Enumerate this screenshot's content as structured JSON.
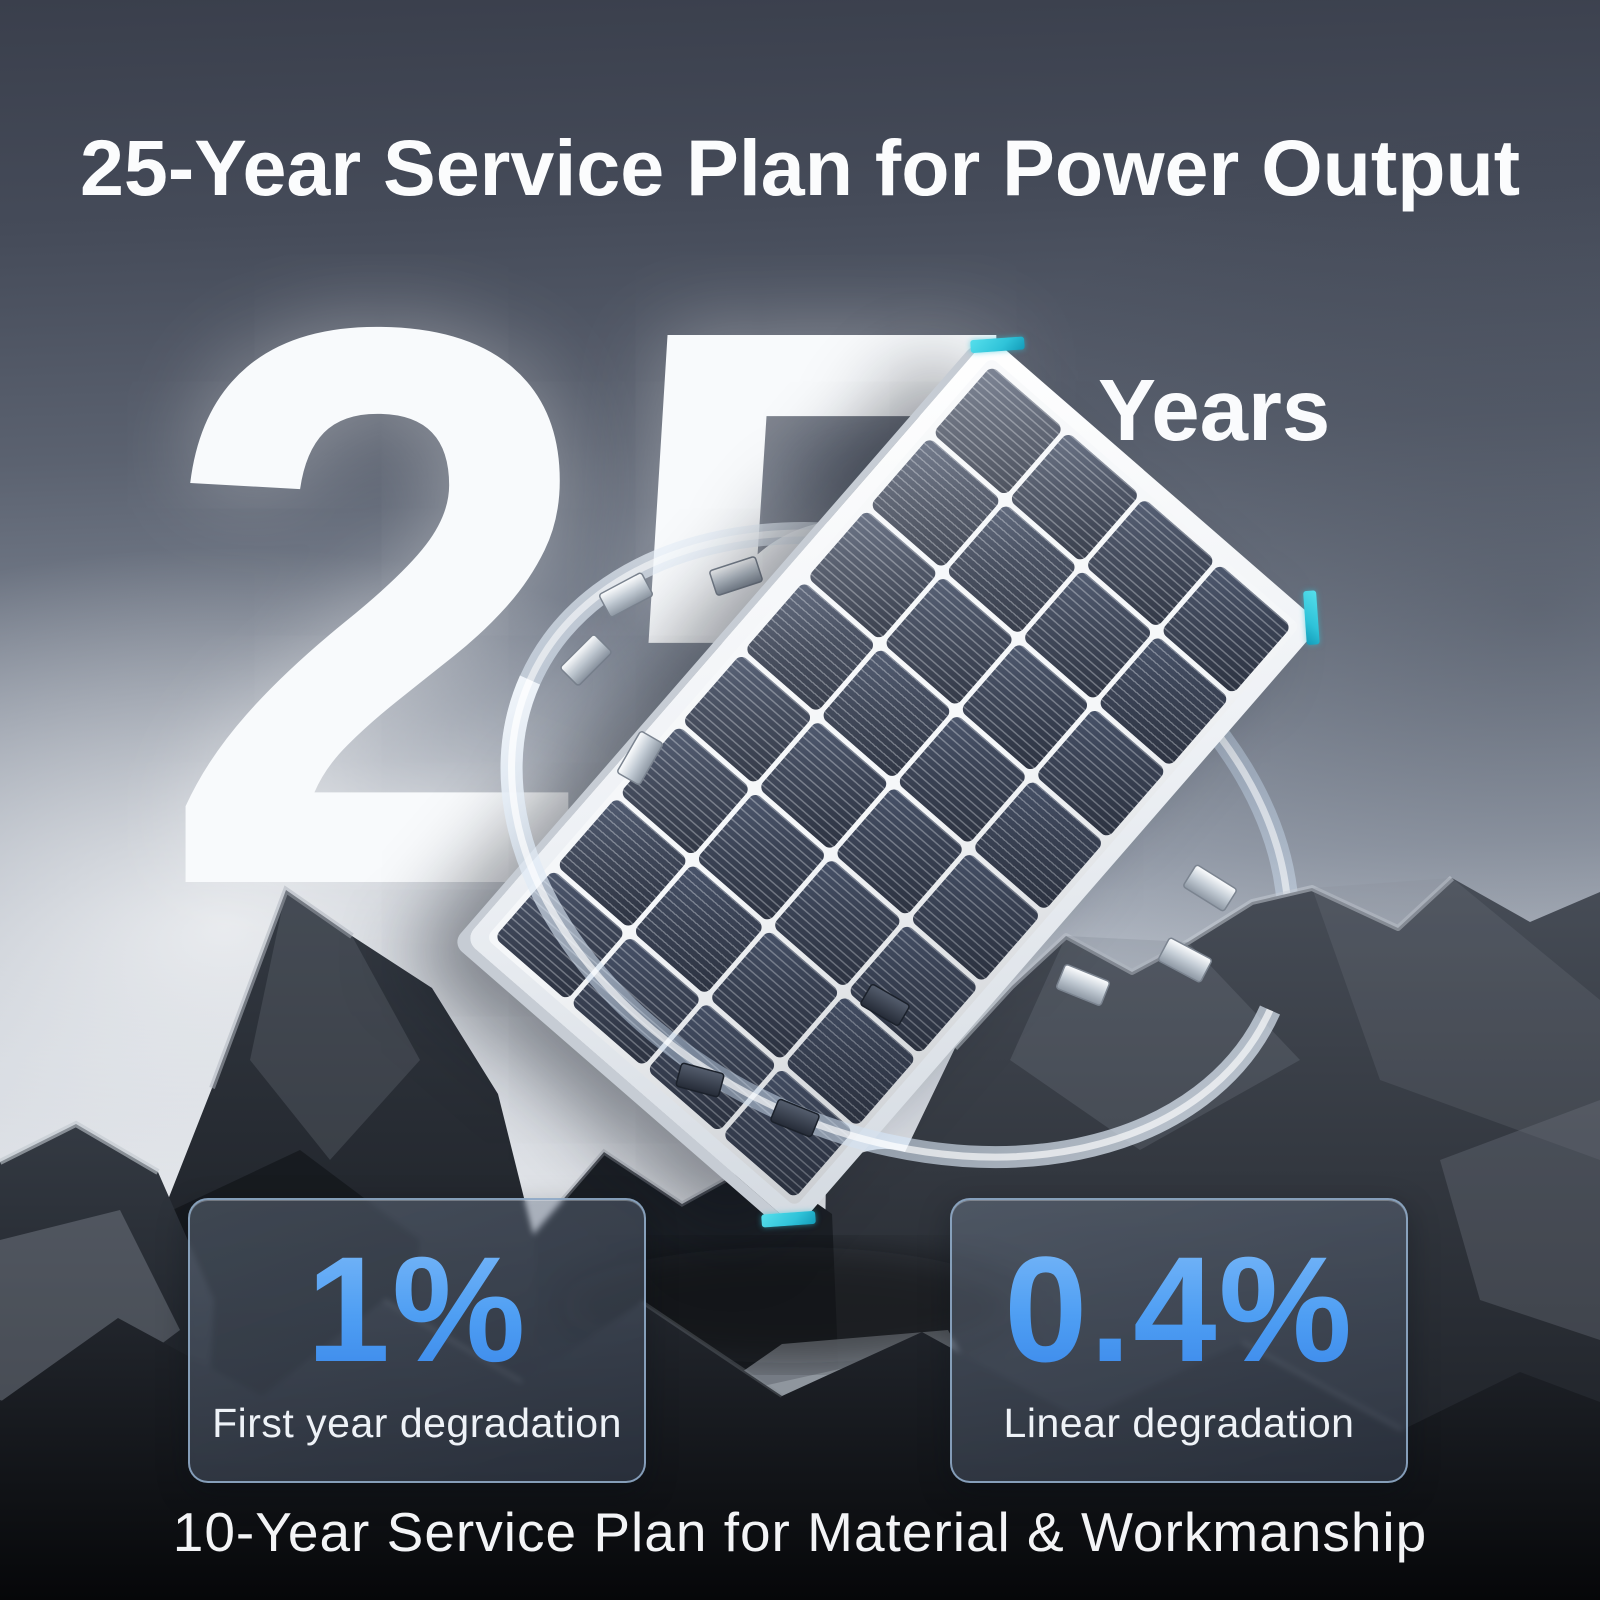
{
  "hero": {
    "title": "25-Year Service Plan for Power Output",
    "big_number": "25",
    "big_number_unit": "Years"
  },
  "stats": [
    {
      "value": "1%",
      "label": "First year degradation"
    },
    {
      "value": "0.4%",
      "label": "Linear degradation"
    }
  ],
  "footer": {
    "note": "10-Year Service Plan for Material & Workmanship"
  },
  "colors": {
    "accent_blue": "#4e9ef3",
    "panel_accent_cyan": "#2fc3d9",
    "background_top": "#3a3f4c",
    "background_light": "#e9ebef",
    "rock_dark": "#0d0f13",
    "text_white": "#fbfcfd"
  }
}
